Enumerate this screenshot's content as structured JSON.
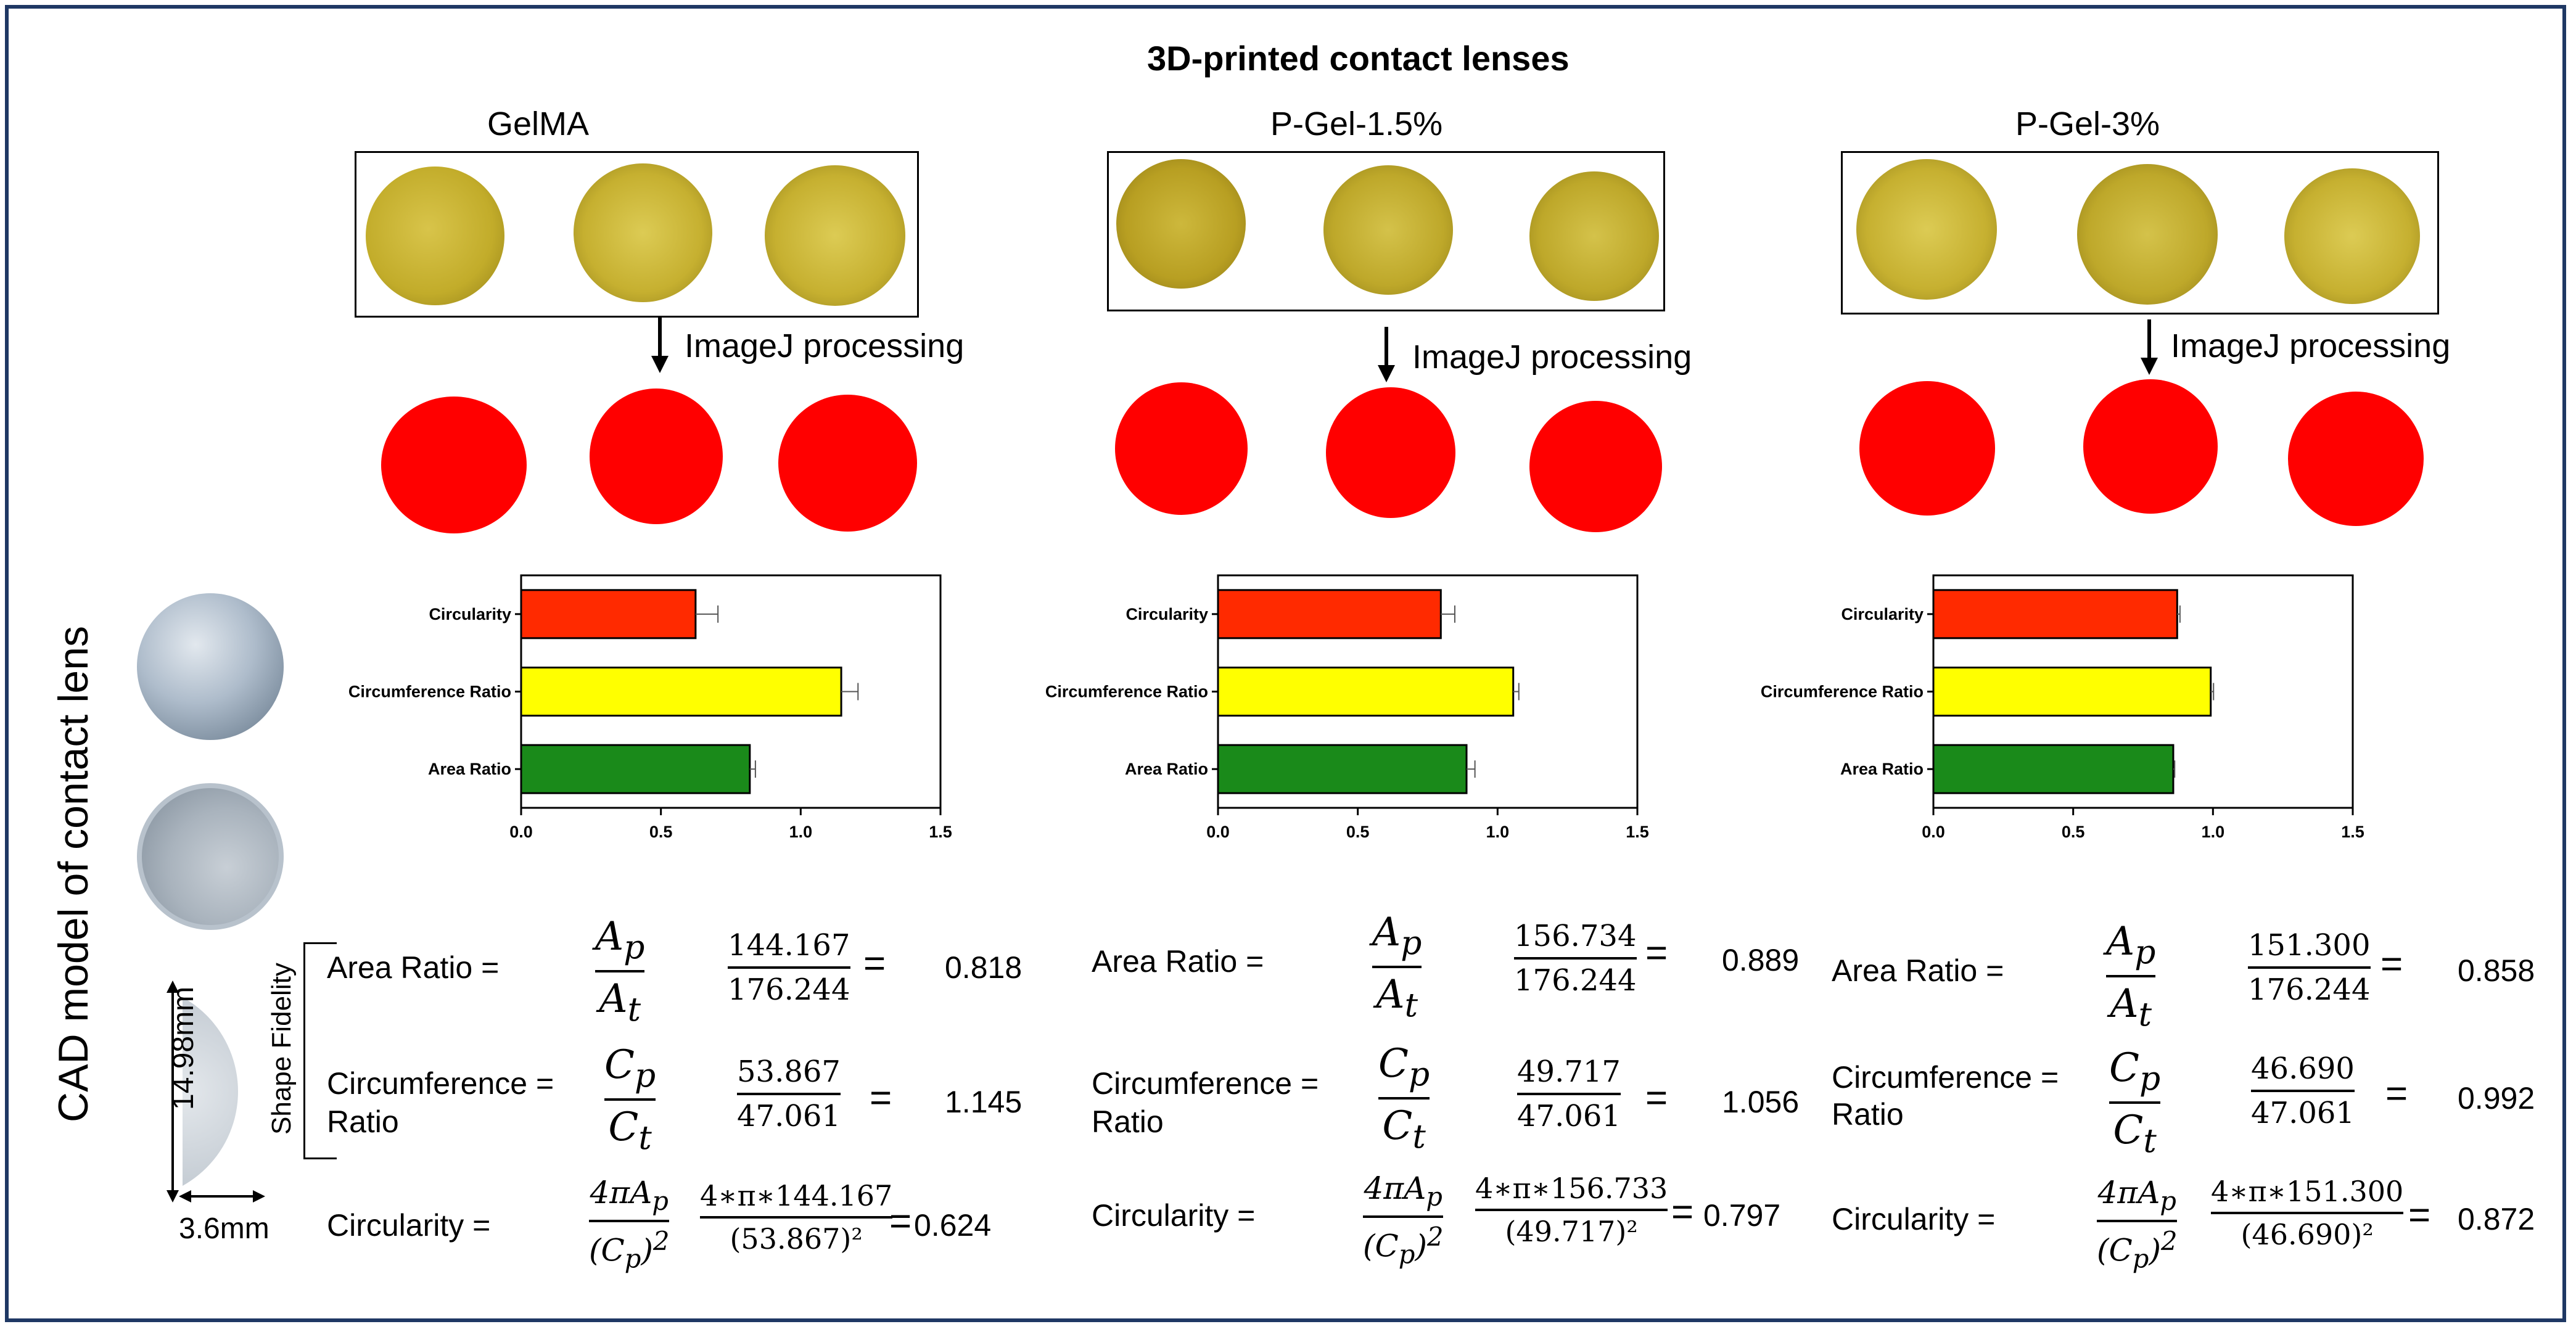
{
  "figure_title": "3D-printed contact lenses",
  "side_label": "CAD model of contact lens",
  "dimensions": {
    "height": "14.98mm",
    "width": "3.6mm"
  },
  "shape_fidelity_label": "Shape Fidelity",
  "processing_label": "ImageJ processing",
  "colors": {
    "circularity": "#ff2a00",
    "circumference": "#ffff00",
    "area": "#1a8a1a",
    "lens": "#c9b32a",
    "blob": "#ff0000",
    "border": "#1f3864"
  },
  "icons": [
    "arrow-down-icon",
    "double-arrow-icon"
  ],
  "chart_data": [
    {
      "type": "bar",
      "orientation": "horizontal",
      "panel": "GelMA",
      "categories": [
        "Circularity",
        "Circumference Ratio",
        "Area Ratio"
      ],
      "values": [
        0.624,
        1.145,
        0.818
      ],
      "errors": [
        0.08,
        0.06,
        0.02
      ],
      "xlim": [
        0,
        1.5
      ],
      "xticks": [
        "0.0",
        "0.5",
        "1.0",
        "1.5"
      ]
    },
    {
      "type": "bar",
      "orientation": "horizontal",
      "panel": "P-Gel-1.5%",
      "categories": [
        "Circularity",
        "Circumference Ratio",
        "Area Ratio"
      ],
      "values": [
        0.797,
        1.056,
        0.889
      ],
      "errors": [
        0.05,
        0.02,
        0.03
      ],
      "xlim": [
        0,
        1.5
      ],
      "xticks": [
        "0.0",
        "0.5",
        "1.0",
        "1.5"
      ]
    },
    {
      "type": "bar",
      "orientation": "horizontal",
      "panel": "P-Gel-3%",
      "categories": [
        "Circularity",
        "Circumference Ratio",
        "Area Ratio"
      ],
      "values": [
        0.872,
        0.992,
        0.858
      ],
      "errors": [
        0.01,
        0.01,
        0.005
      ],
      "xlim": [
        0,
        1.5
      ],
      "xticks": [
        "0.0",
        "0.5",
        "1.0",
        "1.5"
      ]
    }
  ],
  "panels": [
    {
      "title": "GelMA",
      "area_label": "Area Ratio =",
      "area_num": "144.167",
      "area_den": "176.244",
      "area_val": "0.818",
      "circ_label_1": "Circumference =",
      "circ_label_2": "Ratio",
      "circ_num": "53.867",
      "circ_den": "47.061",
      "circ_val": "1.145",
      "circu_label": "Circularity =",
      "circu_num": "4∗π∗144.167",
      "circu_den": "(53.867)²",
      "circu_val": "0.624"
    },
    {
      "title": "P-Gel-1.5%",
      "area_label": "Area Ratio    =",
      "area_num": "156.734",
      "area_den": "176.244",
      "area_val": "0.889",
      "circ_label_1": "Circumference  =",
      "circ_label_2": "Ratio",
      "circ_num": "49.717",
      "circ_den": "47.061",
      "circ_val": "1.056",
      "circu_label": "Circularity      =",
      "circu_num": "4∗π∗156.733",
      "circu_den": "(49.717)²",
      "circu_val": "0.797"
    },
    {
      "title": "P-Gel-3%",
      "area_label": "Area Ratio    =",
      "area_num": "151.300",
      "area_den": "176.244",
      "area_val": "0.858",
      "circ_label_1": "Circumference =",
      "circ_label_2": "Ratio",
      "circ_num": "46.690",
      "circ_den": "47.061",
      "circ_val": "0.992",
      "circu_label": "Circularity    =",
      "circu_num": "4∗π∗151.300",
      "circu_den": "(46.690)²",
      "circu_val": "0.872"
    }
  ],
  "formula": {
    "A": "A",
    "C": "C",
    "p": "p",
    "t": "t",
    "four_pi": "4π",
    "sq": "2"
  }
}
